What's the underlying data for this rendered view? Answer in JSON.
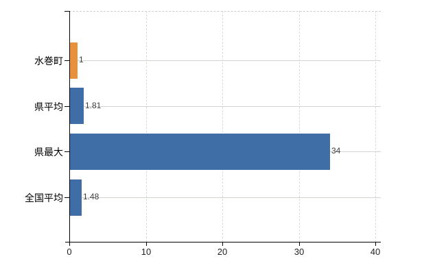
{
  "chart_data": {
    "type": "bar",
    "orientation": "horizontal",
    "categories": [
      "水巻町",
      "県平均",
      "県最大",
      "全国平均"
    ],
    "values": [
      1,
      1.81,
      34,
      1.48
    ],
    "value_labels": [
      "1",
      "1.81",
      "34",
      "1.48"
    ],
    "bar_colors": [
      "#e8913d",
      "#3f6ea6",
      "#3f6ea6",
      "#3f6ea6"
    ],
    "xlim": [
      0,
      40
    ],
    "x_ticks": [
      0,
      10,
      20,
      30,
      40
    ],
    "grid": true,
    "legend_position": "none"
  },
  "colors": {
    "highlight_bar": "#e8913d",
    "default_bar": "#3f6ea6",
    "axis": "#000000",
    "vertical_grid": "#d9d9d9",
    "horizontal_grid": "#cfd6cd",
    "plot_border_dashed": "#cccccc",
    "value_label": "#3c3c3c",
    "tick_label": "#1f1f1f",
    "category_label": "#000000",
    "background": "#ffffff"
  }
}
